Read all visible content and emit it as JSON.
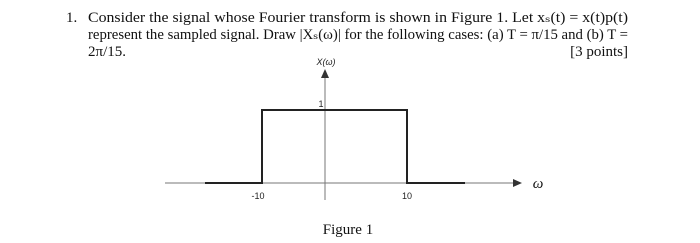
{
  "problem": {
    "number": "1.",
    "lines": [
      "Consider the signal whose Fourier transform is shown in Figure 1. Let xₛ(t) = x(t)p(t)",
      "represent the sampled signal. Draw |Xₛ(ω)| for the following cases: (a) T = π/15 and (b) T =",
      "2π/15."
    ],
    "points": "[3 points]"
  },
  "figure": {
    "y_label": "X(ω)",
    "x_label": "ω",
    "left_edge": "-10",
    "right_edge": "10",
    "height": "1",
    "caption": "Figure 1"
  }
}
